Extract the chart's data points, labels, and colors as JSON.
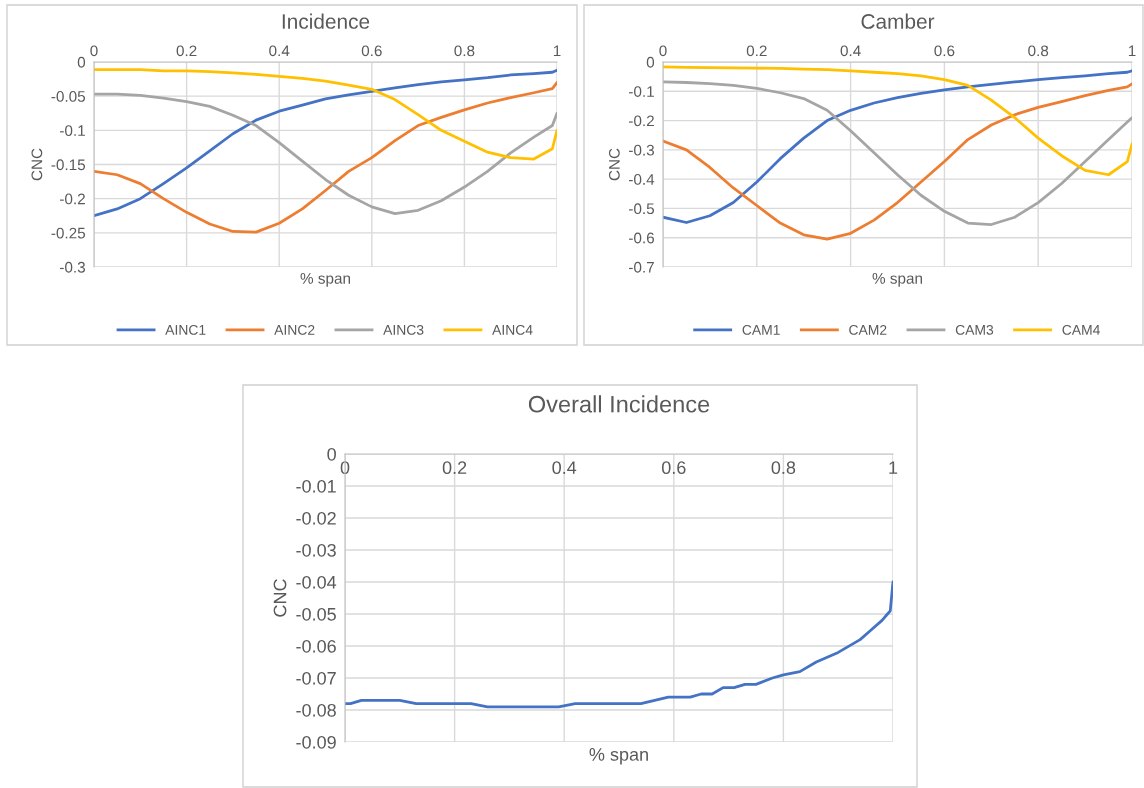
{
  "chart_data": [
    {
      "type": "line",
      "title": "Incidence",
      "xlabel": "% span",
      "ylabel": "CNC",
      "xlim": [
        0,
        1
      ],
      "xticks": [
        0,
        0.2,
        0.4,
        0.6,
        0.8,
        1
      ],
      "ylim": [
        -0.3,
        0
      ],
      "yticks": [
        0,
        -0.05,
        -0.1,
        -0.15,
        -0.2,
        -0.25,
        -0.3
      ],
      "grid": true,
      "legend": "bottom",
      "marker": "none",
      "line_style": "solid",
      "x": [
        0,
        0.05,
        0.1,
        0.15,
        0.2,
        0.25,
        0.3,
        0.35,
        0.4,
        0.45,
        0.5,
        0.55,
        0.6,
        0.65,
        0.7,
        0.75,
        0.8,
        0.85,
        0.9,
        0.95,
        0.99,
        1
      ],
      "series": [
        {
          "name": "AINC1",
          "color": "#4472c4",
          "values": [
            -0.225,
            -0.215,
            -0.2,
            -0.178,
            -0.155,
            -0.13,
            -0.105,
            -0.085,
            -0.072,
            -0.063,
            -0.054,
            -0.048,
            -0.043,
            -0.038,
            -0.033,
            -0.029,
            -0.026,
            -0.023,
            -0.019,
            -0.017,
            -0.015,
            -0.012
          ]
        },
        {
          "name": "AINC2",
          "color": "#ed7d31",
          "values": [
            -0.16,
            -0.165,
            -0.178,
            -0.2,
            -0.22,
            -0.237,
            -0.248,
            -0.249,
            -0.236,
            -0.215,
            -0.188,
            -0.16,
            -0.14,
            -0.115,
            -0.093,
            -0.081,
            -0.07,
            -0.06,
            -0.052,
            -0.045,
            -0.039,
            -0.03
          ]
        },
        {
          "name": "AINC3",
          "color": "#a5a5a5",
          "values": [
            -0.047,
            -0.047,
            -0.049,
            -0.053,
            -0.058,
            -0.065,
            -0.078,
            -0.093,
            -0.118,
            -0.145,
            -0.172,
            -0.195,
            -0.212,
            -0.222,
            -0.217,
            -0.203,
            -0.183,
            -0.16,
            -0.133,
            -0.11,
            -0.093,
            -0.075
          ]
        },
        {
          "name": "AINC4",
          "color": "#ffc000",
          "values": [
            -0.011,
            -0.011,
            -0.011,
            -0.013,
            -0.013,
            -0.014,
            -0.016,
            -0.018,
            -0.021,
            -0.024,
            -0.028,
            -0.034,
            -0.04,
            -0.055,
            -0.077,
            -0.1,
            -0.116,
            -0.132,
            -0.14,
            -0.142,
            -0.127,
            -0.1
          ]
        }
      ]
    },
    {
      "type": "line",
      "title": "Camber",
      "xlabel": "% span",
      "ylabel": "CNC",
      "xlim": [
        0,
        1
      ],
      "xticks": [
        0,
        0.2,
        0.4,
        0.6,
        0.8,
        1
      ],
      "ylim": [
        -0.7,
        0
      ],
      "yticks": [
        0,
        -0.1,
        -0.2,
        -0.3,
        -0.4,
        -0.5,
        -0.6,
        -0.7
      ],
      "grid": true,
      "legend": "bottom",
      "marker": "none",
      "line_style": "solid",
      "x": [
        0,
        0.05,
        0.1,
        0.15,
        0.2,
        0.25,
        0.3,
        0.35,
        0.4,
        0.45,
        0.5,
        0.55,
        0.6,
        0.65,
        0.7,
        0.75,
        0.8,
        0.85,
        0.9,
        0.95,
        0.99,
        1
      ],
      "series": [
        {
          "name": "CAM1",
          "color": "#4472c4",
          "values": [
            -0.53,
            -0.548,
            -0.525,
            -0.48,
            -0.41,
            -0.33,
            -0.26,
            -0.2,
            -0.165,
            -0.14,
            -0.122,
            -0.107,
            -0.095,
            -0.085,
            -0.076,
            -0.068,
            -0.06,
            -0.053,
            -0.047,
            -0.04,
            -0.035,
            -0.03
          ]
        },
        {
          "name": "CAM2",
          "color": "#ed7d31",
          "values": [
            -0.27,
            -0.3,
            -0.36,
            -0.43,
            -0.49,
            -0.55,
            -0.59,
            -0.605,
            -0.585,
            -0.54,
            -0.48,
            -0.41,
            -0.34,
            -0.265,
            -0.215,
            -0.18,
            -0.155,
            -0.135,
            -0.115,
            -0.097,
            -0.085,
            -0.075
          ]
        },
        {
          "name": "CAM3",
          "color": "#a5a5a5",
          "values": [
            -0.068,
            -0.07,
            -0.074,
            -0.08,
            -0.09,
            -0.105,
            -0.125,
            -0.165,
            -0.235,
            -0.31,
            -0.385,
            -0.455,
            -0.51,
            -0.55,
            -0.555,
            -0.53,
            -0.48,
            -0.415,
            -0.34,
            -0.265,
            -0.205,
            -0.19
          ]
        },
        {
          "name": "CAM4",
          "color": "#ffc000",
          "values": [
            -0.017,
            -0.018,
            -0.019,
            -0.02,
            -0.021,
            -0.022,
            -0.024,
            -0.026,
            -0.03,
            -0.035,
            -0.04,
            -0.047,
            -0.06,
            -0.08,
            -0.13,
            -0.19,
            -0.26,
            -0.32,
            -0.37,
            -0.385,
            -0.34,
            -0.28
          ]
        }
      ]
    },
    {
      "type": "line",
      "title": "Overall Incidence",
      "xlabel": "% span",
      "ylabel": "CNC",
      "xlim": [
        0,
        1
      ],
      "xticks": [
        0,
        0.2,
        0.4,
        0.6,
        0.8,
        1
      ],
      "ylim": [
        -0.09,
        0
      ],
      "yticks": [
        0,
        -0.01,
        -0.02,
        -0.03,
        -0.04,
        -0.05,
        -0.06,
        -0.07,
        -0.08,
        -0.09
      ],
      "grid": true,
      "marker": "none",
      "line_style": "solid",
      "x": [
        0,
        0.01,
        0.03,
        0.1,
        0.13,
        0.23,
        0.26,
        0.39,
        0.42,
        0.54,
        0.59,
        0.63,
        0.65,
        0.67,
        0.69,
        0.71,
        0.73,
        0.75,
        0.78,
        0.8,
        0.83,
        0.86,
        0.9,
        0.94,
        0.96,
        0.98,
        0.99,
        0.995,
        1
      ],
      "series": [
        {
          "color": "#4472c4",
          "values": [
            -0.078,
            -0.078,
            -0.077,
            -0.077,
            -0.078,
            -0.078,
            -0.079,
            -0.079,
            -0.078,
            -0.078,
            -0.076,
            -0.076,
            -0.075,
            -0.075,
            -0.073,
            -0.073,
            -0.072,
            -0.072,
            -0.07,
            -0.069,
            -0.068,
            -0.065,
            -0.062,
            -0.058,
            -0.055,
            -0.052,
            -0.05,
            -0.049,
            -0.04
          ]
        }
      ]
    }
  ]
}
